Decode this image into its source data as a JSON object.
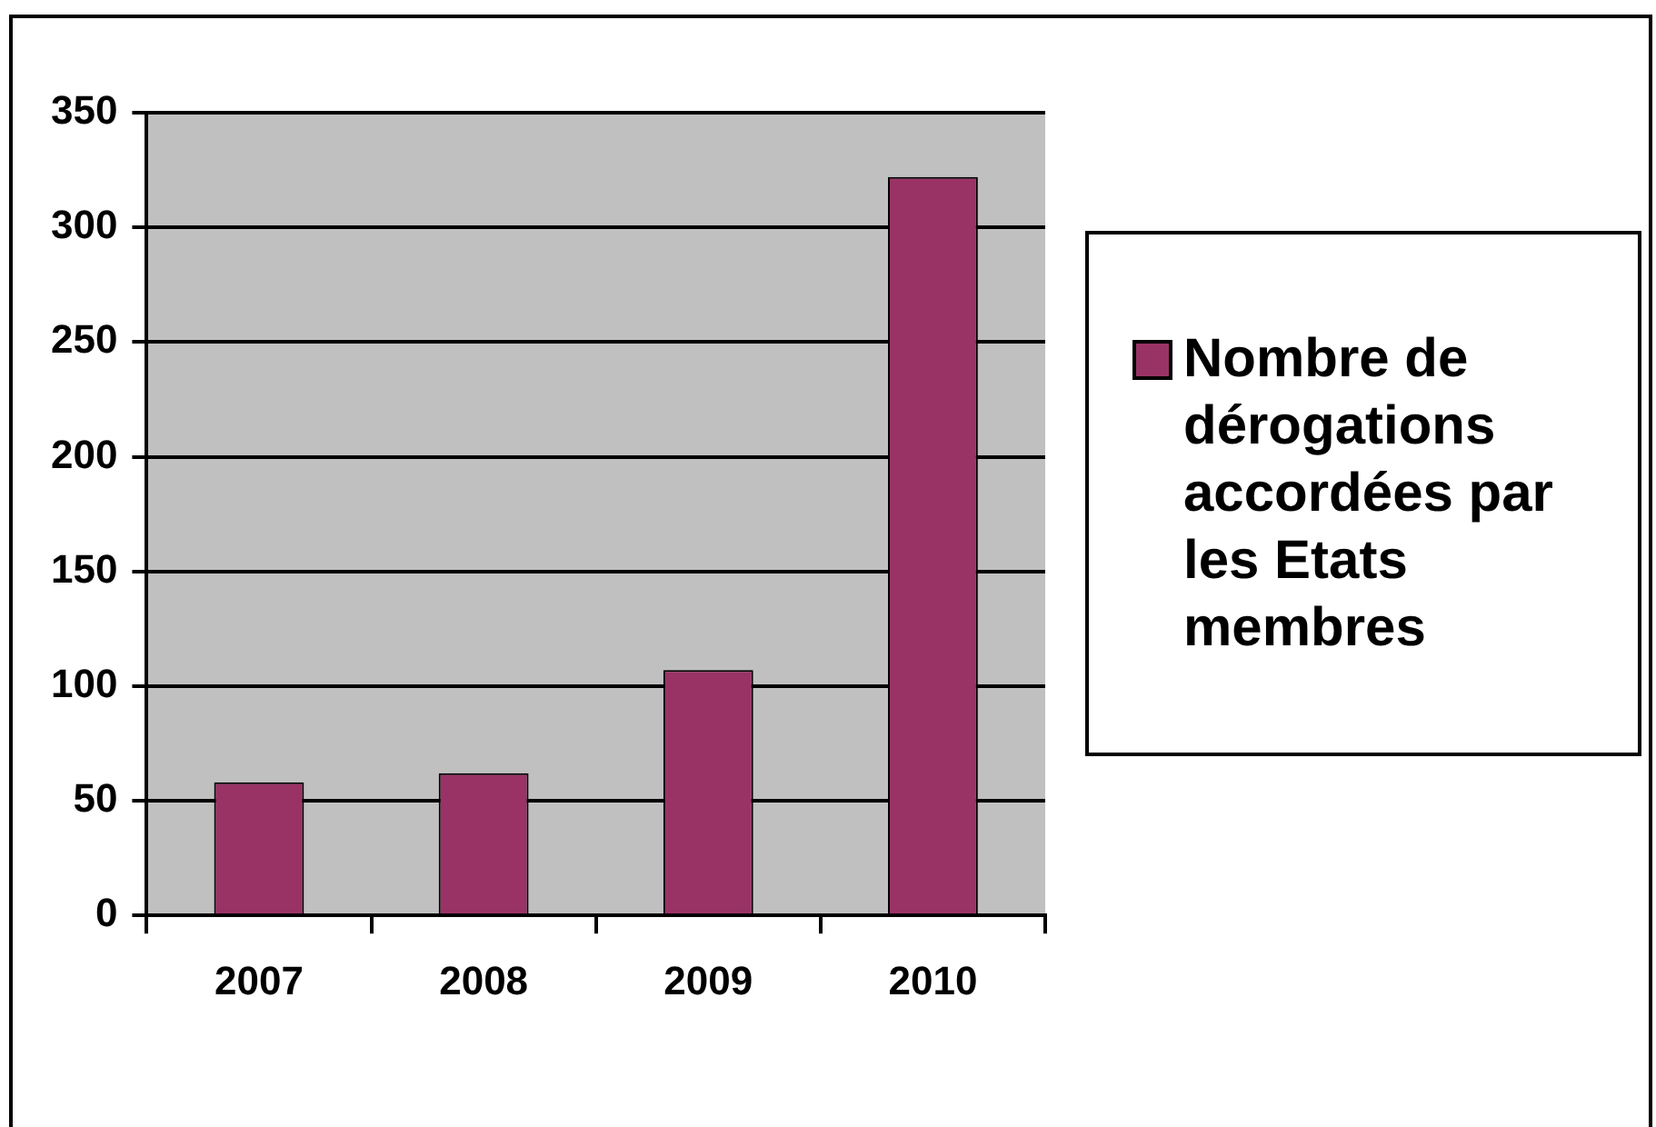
{
  "chart_data": {
    "type": "bar",
    "categories": [
      "2007",
      "2008",
      "2009",
      "2010"
    ],
    "series": [
      {
        "name": "Nombre de dérogations accordées par les Etats membres",
        "color": "#993366",
        "values": [
          58,
          62,
          107,
          322
        ]
      }
    ],
    "ylim": [
      0,
      350
    ],
    "yticks": [
      0,
      50,
      100,
      150,
      200,
      250,
      300,
      350
    ],
    "grid": "y",
    "legend": "right"
  }
}
